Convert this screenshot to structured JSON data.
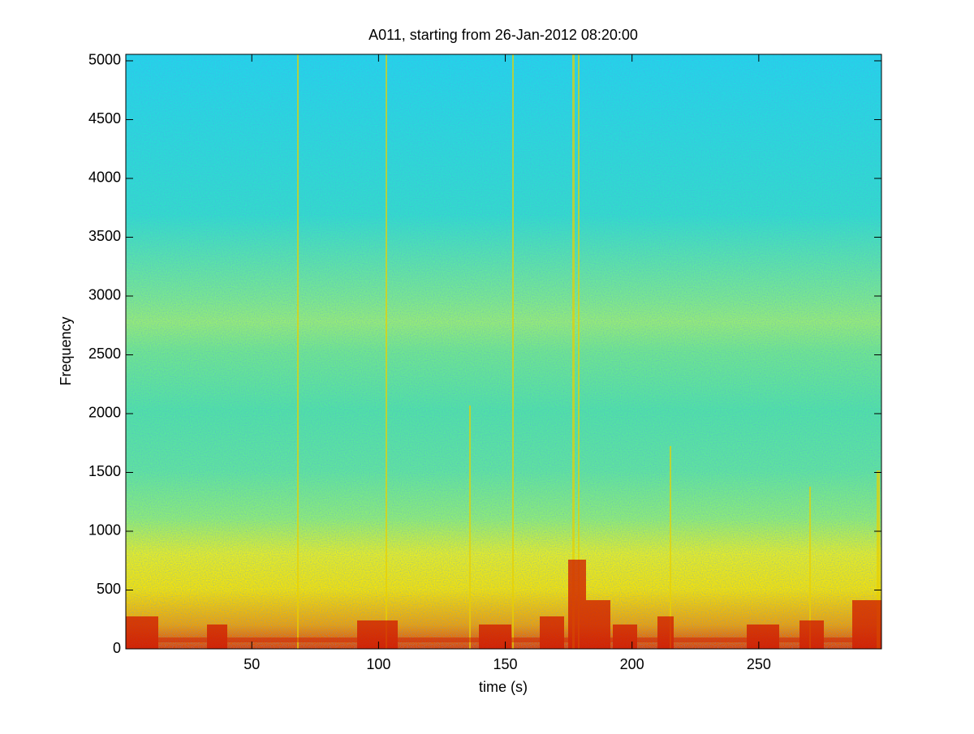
{
  "chart_data": {
    "type": "spectrogram",
    "title": "A011, starting from 26-Jan-2012 08:20:00",
    "x_label": "time (s)",
    "y_label": "Frequency",
    "xlim": [
      0.3,
      298.4
    ],
    "xticks": [
      50,
      100,
      150,
      200,
      250
    ],
    "ylim": [
      0,
      5055
    ],
    "yticks": [
      0,
      500,
      1000,
      1500,
      2000,
      2500,
      3000,
      3500,
      4000,
      4500,
      5000
    ]
  }
}
